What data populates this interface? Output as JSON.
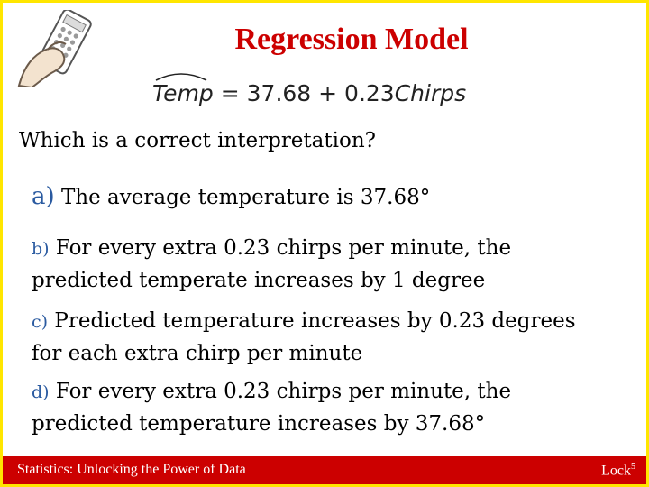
{
  "slide": {
    "title": "Regression Model",
    "equation": {
      "lhs": "Temp",
      "equals": " = 37.68 + 0.23",
      "rhs_var": "Chirps"
    },
    "question": "Which is a correct interpretation?",
    "options": [
      {
        "letter": "a)",
        "text": " The average temperature is 37.68°"
      },
      {
        "letter": "b)",
        "text": " For every extra 0.23 chirps per minute, the predicted temperate increases by 1 degree"
      },
      {
        "letter": "c)",
        "text": " Predicted temperature increases by 0.23 degrees for each extra chirp per minute"
      },
      {
        "letter": "d)",
        "text": " For every extra 0.23 chirps per minute, the predicted temperature increases by 37.68°"
      }
    ],
    "footer": {
      "book": "Statistics: Unlocking the Power of Data",
      "lock": "Lock",
      "lock_sup": "5"
    }
  },
  "colors": {
    "title": "#cc0000",
    "footer_bg": "#cc0000",
    "border": "#ffe600",
    "option_letter": "#2a5aa0"
  },
  "icons": [
    "clicker-remote-icon"
  ]
}
